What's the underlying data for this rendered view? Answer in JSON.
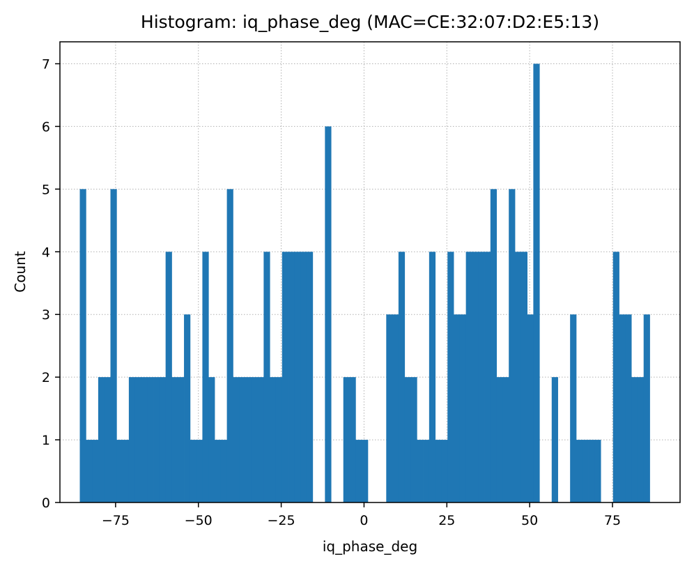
{
  "chart_data": {
    "type": "bar",
    "title": "Histogram: iq_phase_deg (MAC=CE:32:07:D2:E5:13)",
    "xlabel": "iq_phase_deg",
    "ylabel": "Count",
    "xlim": [
      -91.8,
      95.4
    ],
    "ylim": [
      0,
      7.35
    ],
    "xticks": [
      -75,
      -50,
      -25,
      0,
      25,
      50,
      75
    ],
    "xtick_labels": [
      "−75",
      "−50",
      "−25",
      "0",
      "25",
      "50",
      "75"
    ],
    "yticks": [
      0,
      1,
      2,
      3,
      4,
      5,
      6,
      7
    ],
    "ytick_labels": [
      "0",
      "1",
      "2",
      "3",
      "4",
      "5",
      "6",
      "7"
    ],
    "grid": true,
    "bar_color": "#1f77b4",
    "bin_start": -85.8,
    "bin_width": 1.85,
    "counts": [
      5,
      1,
      1,
      2,
      2,
      5,
      1,
      1,
      2,
      2,
      2,
      2,
      2,
      2,
      4,
      2,
      2,
      3,
      1,
      1,
      4,
      2,
      1,
      1,
      5,
      2,
      2,
      2,
      2,
      2,
      4,
      2,
      2,
      4,
      4,
      4,
      4,
      4,
      0,
      0,
      6,
      0,
      0,
      2,
      2,
      1,
      1,
      0,
      0,
      0,
      3,
      3,
      4,
      2,
      2,
      1,
      1,
      4,
      1,
      1,
      4,
      3,
      3,
      4,
      4,
      4,
      4,
      5,
      2,
      2,
      5,
      4,
      4,
      3,
      7,
      0,
      0,
      2,
      0,
      0,
      3,
      1,
      1,
      1,
      1,
      0,
      0,
      4,
      3,
      3,
      2,
      2,
      3
    ]
  }
}
